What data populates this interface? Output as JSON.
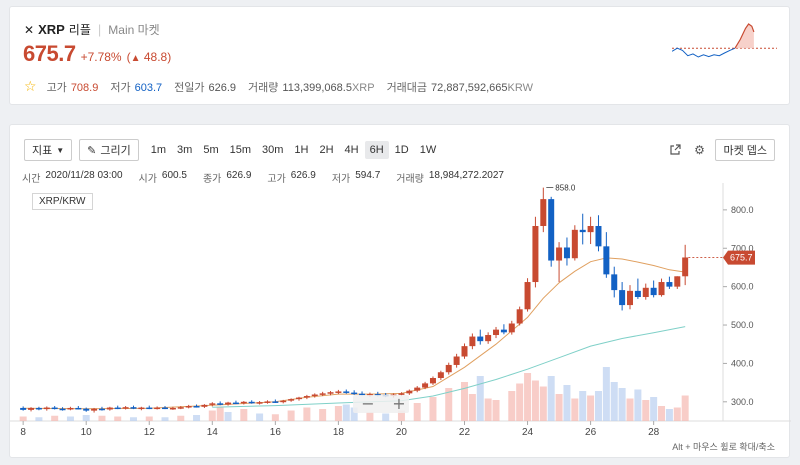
{
  "coin": {
    "icon": "xrp-icon",
    "symbol": "XRP",
    "name_kr": "리플",
    "market": "Main 마켓"
  },
  "price": {
    "value": "675.7",
    "change_pct": "+7.78%",
    "change_abs": "48.8"
  },
  "stats": {
    "high_label": "고가",
    "high": "708.9",
    "low_label": "저가",
    "low": "603.7",
    "prev_label": "전일가",
    "prev": "626.9",
    "vol_label": "거래량",
    "vol": "113,399,068.5",
    "vol_unit": "XRP",
    "amt_label": "거래대금",
    "amt": "72,887,592,665",
    "amt_unit": "KRW"
  },
  "toolbar": {
    "indicator_label": "지표",
    "draw_label": "그리기",
    "timeframes": [
      "1m",
      "3m",
      "5m",
      "15m",
      "30m",
      "1H",
      "2H",
      "4H",
      "6H",
      "1D",
      "1W"
    ],
    "active_timeframe": "6H",
    "depth_label": "마켓 뎁스"
  },
  "ohlc": {
    "time_label": "시간",
    "time": "2020/11/28 03:00",
    "open_label": "시가",
    "open": "600.5",
    "close_label": "종가",
    "close": "626.9",
    "high_label": "고가",
    "high": "626.9",
    "low_label": "저가",
    "low": "594.7",
    "vol_label": "거래량",
    "vol": "18,984,272.2027"
  },
  "pair": "XRP/KRW",
  "hint": "Alt + 마우스 휠로 확대/축소",
  "colors": {
    "up": "#c84a31",
    "down": "#1261c4",
    "ma_short": "#e0a060",
    "ma_long": "#7fd0c8"
  },
  "chart_data": {
    "type": "candlestick",
    "x_ticks": [
      "8",
      "10",
      "12",
      "14",
      "16",
      "18",
      "20",
      "22",
      "24",
      "26",
      "28"
    ],
    "y_ticks": [
      "300.0",
      "400.0",
      "500.0",
      "600.0",
      "700.0",
      "800.0"
    ],
    "last_price_tag": "675.7",
    "peak_label": "858.0",
    "ylim": [
      250,
      870
    ],
    "x_range": [
      7.9,
      30.2
    ],
    "candles": [
      {
        "d": 8.0,
        "o": 284,
        "h": 288,
        "l": 277,
        "c": 279
      },
      {
        "d": 8.25,
        "o": 279,
        "h": 286,
        "l": 275,
        "c": 284
      },
      {
        "d": 8.5,
        "o": 284,
        "h": 287,
        "l": 278,
        "c": 281
      },
      {
        "d": 8.75,
        "o": 281,
        "h": 288,
        "l": 277,
        "c": 285
      },
      {
        "d": 9.0,
        "o": 285,
        "h": 289,
        "l": 280,
        "c": 282
      },
      {
        "d": 9.25,
        "o": 282,
        "h": 286,
        "l": 277,
        "c": 280
      },
      {
        "d": 9.5,
        "o": 280,
        "h": 287,
        "l": 278,
        "c": 284
      },
      {
        "d": 9.75,
        "o": 284,
        "h": 289,
        "l": 280,
        "c": 282
      },
      {
        "d": 10.0,
        "o": 282,
        "h": 285,
        "l": 274,
        "c": 277
      },
      {
        "d": 10.25,
        "o": 277,
        "h": 284,
        "l": 272,
        "c": 282
      },
      {
        "d": 10.5,
        "o": 282,
        "h": 287,
        "l": 277,
        "c": 280
      },
      {
        "d": 10.75,
        "o": 280,
        "h": 287,
        "l": 277,
        "c": 285
      },
      {
        "d": 11.0,
        "o": 285,
        "h": 290,
        "l": 281,
        "c": 283
      },
      {
        "d": 11.25,
        "o": 283,
        "h": 289,
        "l": 280,
        "c": 286
      },
      {
        "d": 11.5,
        "o": 286,
        "h": 290,
        "l": 281,
        "c": 282
      },
      {
        "d": 11.75,
        "o": 282,
        "h": 287,
        "l": 278,
        "c": 285
      },
      {
        "d": 12.0,
        "o": 285,
        "h": 290,
        "l": 281,
        "c": 283
      },
      {
        "d": 12.25,
        "o": 283,
        "h": 288,
        "l": 280,
        "c": 285
      },
      {
        "d": 12.5,
        "o": 285,
        "h": 289,
        "l": 281,
        "c": 282
      },
      {
        "d": 12.75,
        "o": 282,
        "h": 287,
        "l": 279,
        "c": 284
      },
      {
        "d": 13.0,
        "o": 284,
        "h": 289,
        "l": 281,
        "c": 286
      },
      {
        "d": 13.25,
        "o": 286,
        "h": 292,
        "l": 283,
        "c": 289
      },
      {
        "d": 13.5,
        "o": 289,
        "h": 293,
        "l": 285,
        "c": 287
      },
      {
        "d": 13.75,
        "o": 287,
        "h": 294,
        "l": 284,
        "c": 292
      },
      {
        "d": 14.0,
        "o": 292,
        "h": 299,
        "l": 288,
        "c": 296
      },
      {
        "d": 14.25,
        "o": 296,
        "h": 301,
        "l": 291,
        "c": 293
      },
      {
        "d": 14.5,
        "o": 293,
        "h": 300,
        "l": 290,
        "c": 298
      },
      {
        "d": 14.75,
        "o": 298,
        "h": 303,
        "l": 294,
        "c": 296
      },
      {
        "d": 15.0,
        "o": 296,
        "h": 302,
        "l": 293,
        "c": 300
      },
      {
        "d": 15.25,
        "o": 300,
        "h": 304,
        "l": 295,
        "c": 297
      },
      {
        "d": 15.5,
        "o": 297,
        "h": 302,
        "l": 293,
        "c": 299
      },
      {
        "d": 15.75,
        "o": 299,
        "h": 304,
        "l": 295,
        "c": 301
      },
      {
        "d": 16.0,
        "o": 301,
        "h": 306,
        "l": 297,
        "c": 299
      },
      {
        "d": 16.25,
        "o": 299,
        "h": 305,
        "l": 296,
        "c": 303
      },
      {
        "d": 16.5,
        "o": 303,
        "h": 309,
        "l": 300,
        "c": 307
      },
      {
        "d": 16.75,
        "o": 307,
        "h": 313,
        "l": 303,
        "c": 311
      },
      {
        "d": 17.0,
        "o": 311,
        "h": 318,
        "l": 307,
        "c": 315
      },
      {
        "d": 17.25,
        "o": 315,
        "h": 322,
        "l": 311,
        "c": 319
      },
      {
        "d": 17.5,
        "o": 319,
        "h": 326,
        "l": 315,
        "c": 322
      },
      {
        "d": 17.75,
        "o": 322,
        "h": 328,
        "l": 317,
        "c": 325
      },
      {
        "d": 18.0,
        "o": 325,
        "h": 331,
        "l": 320,
        "c": 327
      },
      {
        "d": 18.25,
        "o": 327,
        "h": 332,
        "l": 321,
        "c": 324
      },
      {
        "d": 18.5,
        "o": 324,
        "h": 330,
        "l": 318,
        "c": 321
      },
      {
        "d": 18.75,
        "o": 321,
        "h": 327,
        "l": 316,
        "c": 318
      },
      {
        "d": 19.0,
        "o": 318,
        "h": 324,
        "l": 313,
        "c": 320
      },
      {
        "d": 19.25,
        "o": 320,
        "h": 326,
        "l": 314,
        "c": 318
      },
      {
        "d": 19.5,
        "o": 318,
        "h": 323,
        "l": 312,
        "c": 315
      },
      {
        "d": 19.75,
        "o": 315,
        "h": 322,
        "l": 311,
        "c": 319
      },
      {
        "d": 20.0,
        "o": 319,
        "h": 325,
        "l": 315,
        "c": 322
      },
      {
        "d": 20.25,
        "o": 322,
        "h": 332,
        "l": 318,
        "c": 329
      },
      {
        "d": 20.5,
        "o": 329,
        "h": 341,
        "l": 325,
        "c": 337
      },
      {
        "d": 20.75,
        "o": 337,
        "h": 352,
        "l": 333,
        "c": 348
      },
      {
        "d": 21.0,
        "o": 348,
        "h": 366,
        "l": 344,
        "c": 362
      },
      {
        "d": 21.25,
        "o": 362,
        "h": 381,
        "l": 357,
        "c": 377
      },
      {
        "d": 21.5,
        "o": 377,
        "h": 402,
        "l": 371,
        "c": 396
      },
      {
        "d": 21.75,
        "o": 396,
        "h": 425,
        "l": 389,
        "c": 418
      },
      {
        "d": 22.0,
        "o": 418,
        "h": 452,
        "l": 412,
        "c": 445
      },
      {
        "d": 22.25,
        "o": 445,
        "h": 478,
        "l": 437,
        "c": 470
      },
      {
        "d": 22.5,
        "o": 470,
        "h": 488,
        "l": 449,
        "c": 458
      },
      {
        "d": 22.75,
        "o": 458,
        "h": 481,
        "l": 451,
        "c": 474
      },
      {
        "d": 23.0,
        "o": 474,
        "h": 495,
        "l": 466,
        "c": 488
      },
      {
        "d": 23.25,
        "o": 488,
        "h": 502,
        "l": 476,
        "c": 481
      },
      {
        "d": 23.5,
        "o": 481,
        "h": 511,
        "l": 475,
        "c": 504
      },
      {
        "d": 23.75,
        "o": 504,
        "h": 548,
        "l": 499,
        "c": 541
      },
      {
        "d": 24.0,
        "o": 541,
        "h": 622,
        "l": 535,
        "c": 612
      },
      {
        "d": 24.25,
        "o": 612,
        "h": 782,
        "l": 598,
        "c": 758
      },
      {
        "d": 24.5,
        "o": 758,
        "h": 858,
        "l": 742,
        "c": 828
      },
      {
        "d": 24.75,
        "o": 828,
        "h": 834,
        "l": 652,
        "c": 668
      },
      {
        "d": 25.0,
        "o": 668,
        "h": 716,
        "l": 612,
        "c": 702
      },
      {
        "d": 25.25,
        "o": 702,
        "h": 728,
        "l": 655,
        "c": 674
      },
      {
        "d": 25.5,
        "o": 674,
        "h": 760,
        "l": 668,
        "c": 748
      },
      {
        "d": 25.75,
        "o": 748,
        "h": 790,
        "l": 710,
        "c": 742
      },
      {
        "d": 26.0,
        "o": 742,
        "h": 782,
        "l": 711,
        "c": 758
      },
      {
        "d": 26.25,
        "o": 758,
        "h": 786,
        "l": 692,
        "c": 705
      },
      {
        "d": 26.5,
        "o": 705,
        "h": 742,
        "l": 623,
        "c": 632
      },
      {
        "d": 26.75,
        "o": 632,
        "h": 652,
        "l": 572,
        "c": 591
      },
      {
        "d": 27.0,
        "o": 591,
        "h": 612,
        "l": 538,
        "c": 552
      },
      {
        "d": 27.25,
        "o": 552,
        "h": 604,
        "l": 541,
        "c": 589
      },
      {
        "d": 27.5,
        "o": 589,
        "h": 621,
        "l": 568,
        "c": 573
      },
      {
        "d": 27.75,
        "o": 573,
        "h": 608,
        "l": 566,
        "c": 597
      },
      {
        "d": 28.0,
        "o": 597,
        "h": 616,
        "l": 572,
        "c": 578
      },
      {
        "d": 28.25,
        "o": 578,
        "h": 621,
        "l": 574,
        "c": 612
      },
      {
        "d": 28.5,
        "o": 612,
        "h": 626,
        "l": 594,
        "c": 600
      },
      {
        "d": 28.75,
        "o": 600,
        "h": 627,
        "l": 594,
        "c": 627
      },
      {
        "d": 29.0,
        "o": 627,
        "h": 709,
        "l": 604,
        "c": 676
      }
    ],
    "volumes": [
      {
        "d": 8.0,
        "v": 6,
        "up": true
      },
      {
        "d": 8.5,
        "v": 5,
        "up": false
      },
      {
        "d": 9.0,
        "v": 7,
        "up": true
      },
      {
        "d": 9.5,
        "v": 6,
        "up": false
      },
      {
        "d": 10.0,
        "v": 8,
        "up": false
      },
      {
        "d": 10.5,
        "v": 7,
        "up": true
      },
      {
        "d": 11.0,
        "v": 6,
        "up": true
      },
      {
        "d": 11.5,
        "v": 5,
        "up": false
      },
      {
        "d": 12.0,
        "v": 6,
        "up": true
      },
      {
        "d": 12.5,
        "v": 5,
        "up": false
      },
      {
        "d": 13.0,
        "v": 7,
        "up": true
      },
      {
        "d": 13.5,
        "v": 8,
        "up": false
      },
      {
        "d": 14.0,
        "v": 14,
        "up": true
      },
      {
        "d": 14.25,
        "v": 18,
        "up": true
      },
      {
        "d": 14.5,
        "v": 12,
        "up": false
      },
      {
        "d": 15.0,
        "v": 16,
        "up": true
      },
      {
        "d": 15.5,
        "v": 10,
        "up": false
      },
      {
        "d": 16.0,
        "v": 9,
        "up": true
      },
      {
        "d": 16.5,
        "v": 14,
        "up": true
      },
      {
        "d": 17.0,
        "v": 18,
        "up": true
      },
      {
        "d": 17.5,
        "v": 16,
        "up": true
      },
      {
        "d": 18.0,
        "v": 20,
        "up": true
      },
      {
        "d": 18.25,
        "v": 22,
        "up": false
      },
      {
        "d": 18.5,
        "v": 18,
        "up": false
      },
      {
        "d": 19.0,
        "v": 12,
        "up": true
      },
      {
        "d": 19.5,
        "v": 10,
        "up": false
      },
      {
        "d": 20.0,
        "v": 14,
        "up": true
      },
      {
        "d": 20.5,
        "v": 24,
        "up": true
      },
      {
        "d": 21.0,
        "v": 32,
        "up": true
      },
      {
        "d": 21.5,
        "v": 44,
        "up": true
      },
      {
        "d": 22.0,
        "v": 52,
        "up": true
      },
      {
        "d": 22.25,
        "v": 36,
        "up": true
      },
      {
        "d": 22.5,
        "v": 60,
        "up": false
      },
      {
        "d": 22.75,
        "v": 30,
        "up": true
      },
      {
        "d": 23.0,
        "v": 28,
        "up": true
      },
      {
        "d": 23.5,
        "v": 40,
        "up": true
      },
      {
        "d": 23.75,
        "v": 50,
        "up": true
      },
      {
        "d": 24.0,
        "v": 64,
        "up": true
      },
      {
        "d": 24.25,
        "v": 54,
        "up": true
      },
      {
        "d": 24.5,
        "v": 46,
        "up": true
      },
      {
        "d": 24.75,
        "v": 60,
        "up": false
      },
      {
        "d": 25.0,
        "v": 36,
        "up": true
      },
      {
        "d": 25.25,
        "v": 48,
        "up": false
      },
      {
        "d": 25.5,
        "v": 30,
        "up": true
      },
      {
        "d": 25.75,
        "v": 40,
        "up": false
      },
      {
        "d": 26.0,
        "v": 34,
        "up": true
      },
      {
        "d": 26.25,
        "v": 40,
        "up": false
      },
      {
        "d": 26.5,
        "v": 72,
        "up": false
      },
      {
        "d": 26.75,
        "v": 52,
        "up": false
      },
      {
        "d": 27.0,
        "v": 44,
        "up": false
      },
      {
        "d": 27.25,
        "v": 30,
        "up": true
      },
      {
        "d": 27.5,
        "v": 42,
        "up": false
      },
      {
        "d": 27.75,
        "v": 28,
        "up": true
      },
      {
        "d": 28.0,
        "v": 32,
        "up": false
      },
      {
        "d": 28.25,
        "v": 20,
        "up": true
      },
      {
        "d": 28.5,
        "v": 16,
        "up": false
      },
      {
        "d": 28.75,
        "v": 18,
        "up": true
      },
      {
        "d": 29.0,
        "v": 34,
        "up": true
      }
    ],
    "ma_short": [
      [
        8,
        283
      ],
      [
        10,
        282
      ],
      [
        12,
        283
      ],
      [
        14,
        291
      ],
      [
        16,
        300
      ],
      [
        17,
        312
      ],
      [
        18,
        320
      ],
      [
        19,
        320
      ],
      [
        20,
        322
      ],
      [
        21,
        340
      ],
      [
        22,
        390
      ],
      [
        23,
        450
      ],
      [
        24,
        520
      ],
      [
        24.5,
        570
      ],
      [
        25,
        610
      ],
      [
        25.5,
        640
      ],
      [
        26,
        665
      ],
      [
        26.5,
        675
      ],
      [
        27,
        672
      ],
      [
        27.5,
        664
      ],
      [
        28,
        655
      ],
      [
        28.5,
        644
      ],
      [
        29,
        638
      ]
    ],
    "ma_long": [
      [
        14,
        286
      ],
      [
        16,
        290
      ],
      [
        18,
        297
      ],
      [
        20,
        303
      ],
      [
        21,
        315
      ],
      [
        22,
        335
      ],
      [
        23,
        358
      ],
      [
        24,
        385
      ],
      [
        25,
        415
      ],
      [
        26,
        445
      ],
      [
        27,
        465
      ],
      [
        28,
        480
      ],
      [
        29,
        496
      ]
    ],
    "mini_line": [
      [
        0,
        0.62
      ],
      [
        0.05,
        0.55
      ],
      [
        0.1,
        0.6
      ],
      [
        0.15,
        0.72
      ],
      [
        0.2,
        0.68
      ],
      [
        0.25,
        0.75
      ],
      [
        0.3,
        0.7
      ],
      [
        0.35,
        0.74
      ],
      [
        0.4,
        0.7
      ],
      [
        0.45,
        0.72
      ],
      [
        0.5,
        0.66
      ],
      [
        0.55,
        0.6
      ],
      [
        0.6,
        0.55
      ],
      [
        0.65,
        0.35
      ],
      [
        0.7,
        0.1
      ],
      [
        0.73,
        0.0
      ],
      [
        0.76,
        0.05
      ],
      [
        0.78,
        0.18
      ]
    ],
    "mini_ref_level": 0.55
  }
}
